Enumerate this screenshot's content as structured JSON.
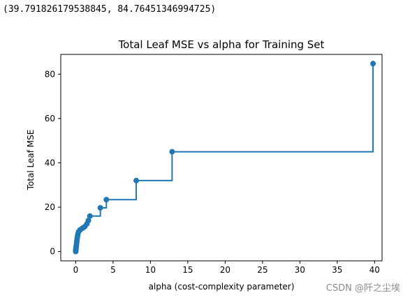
{
  "output_text": "(39.791826179538845, 84.76451346994725)",
  "watermark": "CSDN @阡之尘埃",
  "colors": {
    "series": "#1f77b4",
    "axis": "#000000",
    "background": "#ffffff"
  },
  "chart_data": {
    "type": "line",
    "drawstyle": "steps-post",
    "marker": "circle",
    "title": "Total Leaf MSE vs alpha for Training Set",
    "xlabel": "alpha (cost-complexity parameter)",
    "ylabel": "Total Leaf MSE",
    "xlim": [
      -2,
      41
    ],
    "ylim": [
      -4.2,
      88.9
    ],
    "xticks": [
      0,
      5,
      10,
      15,
      20,
      25,
      30,
      35,
      40
    ],
    "yticks": [
      0,
      20,
      40,
      60,
      80
    ],
    "grid": false,
    "x": [
      0.0,
      0.01,
      0.02,
      0.04,
      0.06,
      0.08,
      0.1,
      0.13,
      0.16,
      0.2,
      0.25,
      0.3,
      0.4,
      0.6,
      0.9,
      1.2,
      1.5,
      1.7,
      1.9,
      3.3,
      4.1,
      8.1,
      12.9,
      39.79
    ],
    "y": [
      0.0,
      0.5,
      1.0,
      1.5,
      2.0,
      2.5,
      3.2,
      4.0,
      5.0,
      6.0,
      7.0,
      8.0,
      9.0,
      9.8,
      10.5,
      11.2,
      12.5,
      14.0,
      16.0,
      19.7,
      23.4,
      32.0,
      45.0,
      84.76
    ]
  }
}
